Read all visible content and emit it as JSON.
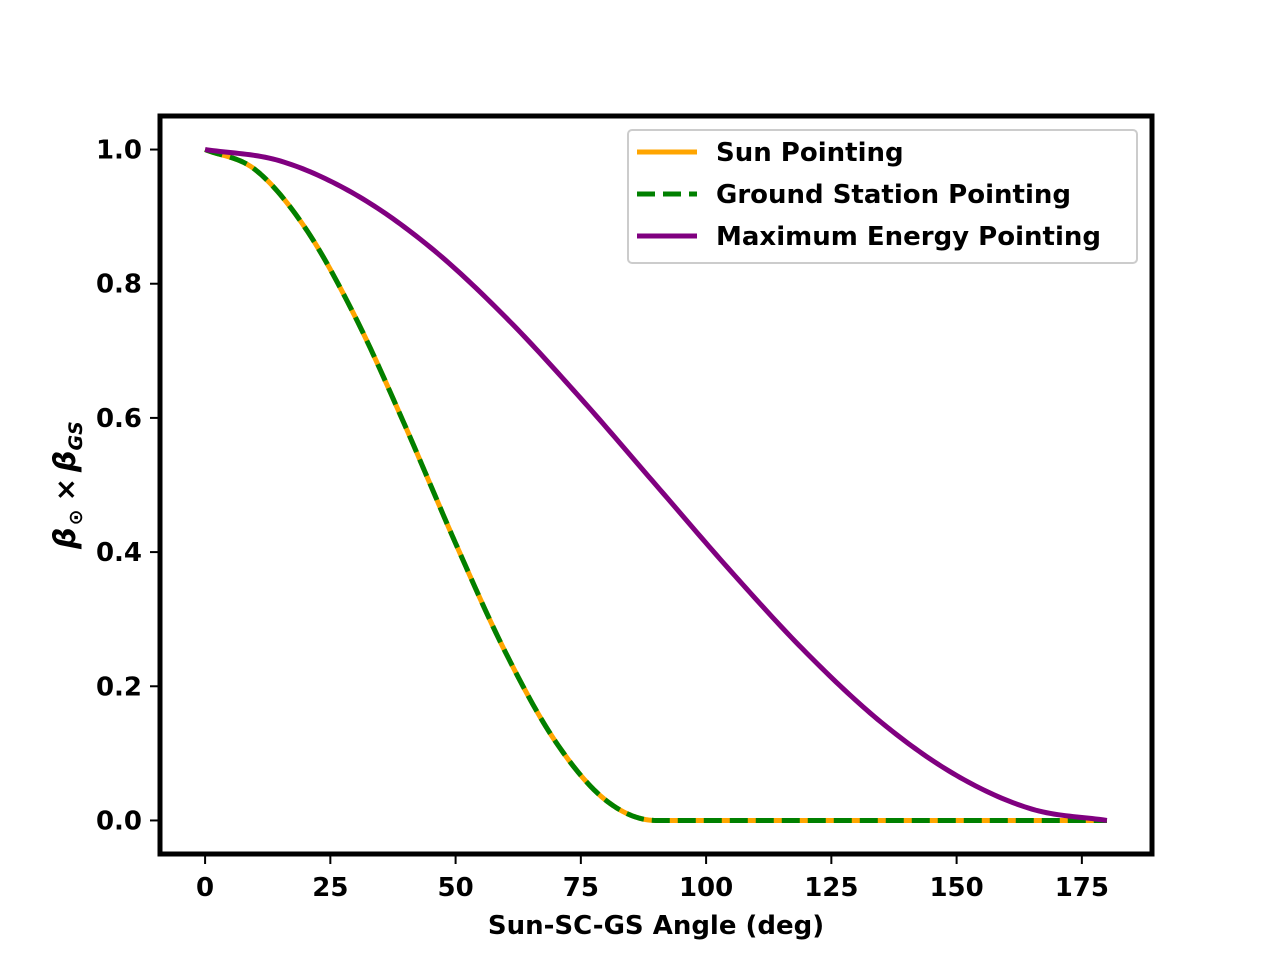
{
  "chart_data": {
    "type": "line",
    "xlabel": "Sun-SC-GS Angle (deg)",
    "ylabel": {
      "beta_symbol": "β",
      "sun_subscript": "⊙",
      "times": "×",
      "gs_subscript": "GS"
    },
    "xlim": [
      -9,
      189
    ],
    "ylim": [
      -0.05,
      1.05
    ],
    "x_ticks": [
      0,
      25,
      50,
      75,
      100,
      125,
      150,
      175
    ],
    "y_ticks": [
      0.0,
      0.2,
      0.4,
      0.6,
      0.8,
      1.0
    ],
    "x_tick_labels": [
      "0",
      "25",
      "50",
      "75",
      "100",
      "125",
      "150",
      "175"
    ],
    "y_tick_labels": [
      "0.0",
      "0.2",
      "0.4",
      "0.6",
      "0.8",
      "1.0"
    ],
    "grid": false,
    "legend_position": "top-right",
    "x_range": [
      0,
      180
    ],
    "series": [
      {
        "name": "Sun Pointing",
        "color": "#ffa500",
        "style": "solid",
        "x": [
          0,
          10,
          20,
          30,
          40,
          45,
          50,
          60,
          70,
          80,
          90,
          100,
          120,
          140,
          160,
          180
        ],
        "y": [
          1.0,
          0.97,
          0.883,
          0.75,
          0.587,
          0.5,
          0.413,
          0.25,
          0.117,
          0.03,
          0.0,
          0.0,
          0.0,
          0.0,
          0.0,
          0.0
        ]
      },
      {
        "name": "Ground Station Pointing",
        "color": "#008000",
        "style": "dashed",
        "x": [
          0,
          10,
          20,
          30,
          40,
          45,
          50,
          60,
          70,
          80,
          90,
          100,
          120,
          140,
          160,
          180
        ],
        "y": [
          1.0,
          0.97,
          0.883,
          0.75,
          0.587,
          0.5,
          0.413,
          0.25,
          0.117,
          0.03,
          0.0,
          0.0,
          0.0,
          0.0,
          0.0,
          0.0
        ]
      },
      {
        "name": "Maximum Energy Pointing",
        "color": "#800080",
        "style": "solid",
        "x": [
          0,
          15,
          30,
          45,
          60,
          75,
          90,
          105,
          120,
          135,
          150,
          165,
          180
        ],
        "y": [
          1.0,
          0.983,
          0.933,
          0.854,
          0.75,
          0.629,
          0.5,
          0.371,
          0.25,
          0.146,
          0.067,
          0.017,
          0.0
        ]
      }
    ]
  }
}
